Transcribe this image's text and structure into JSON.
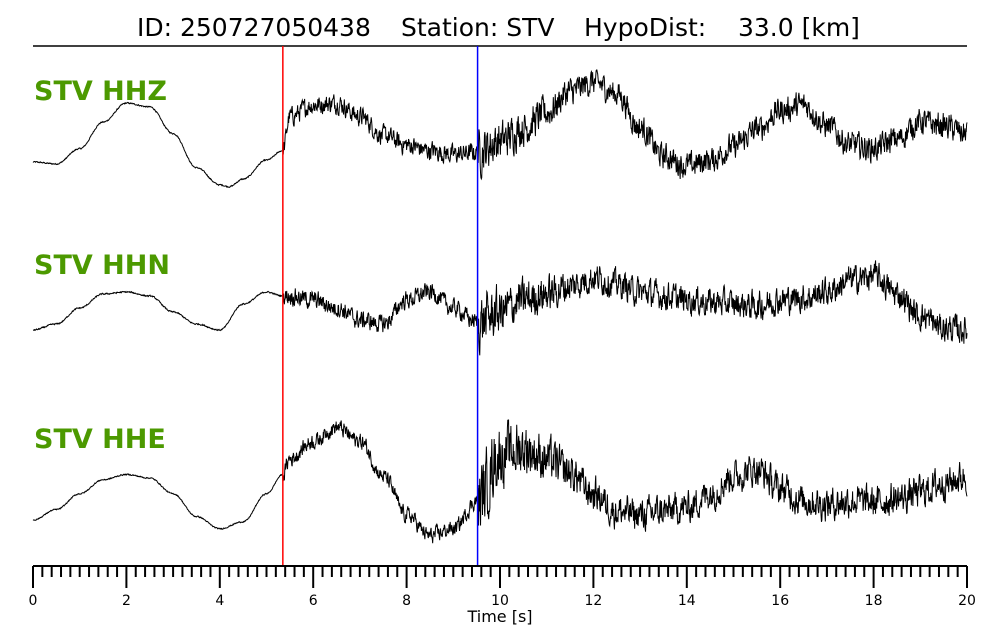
{
  "chart_data": {
    "type": "line",
    "title_parts": {
      "id": "ID: 250727050438",
      "station": "Station: STV",
      "hypodist": "HypoDist:    33.0 [km]"
    },
    "xlabel": "Time [s]",
    "xlim": [
      0,
      20
    ],
    "major_ticks": [
      0,
      2,
      4,
      6,
      8,
      10,
      12,
      14,
      16,
      18,
      20
    ],
    "minor_tick_step": 0.2,
    "grid": false,
    "picks": [
      {
        "phase": "P",
        "time": 5.35,
        "color": "#ff0000"
      },
      {
        "phase": "S",
        "time": 9.52,
        "color": "#0000ff"
      }
    ],
    "label_color": "#4c9900",
    "series": [
      {
        "name": "STV HHZ",
        "noise": [
          0.02,
          0.28,
          0.42
        ],
        "x": [
          0,
          0.5,
          1.0,
          1.5,
          2.0,
          2.5,
          3.0,
          3.5,
          4.0,
          4.2,
          4.5,
          5.0,
          5.35,
          5.5,
          6.0,
          6.5,
          7.0,
          7.5,
          8.0,
          8.5,
          9.0,
          9.5,
          10.0,
          10.5,
          11.0,
          11.5,
          12.0,
          12.5,
          13.0,
          13.5,
          14.0,
          14.5,
          15.0,
          15.5,
          16.0,
          16.5,
          17.0,
          17.5,
          18.0,
          18.5,
          19.0,
          19.5,
          20.0
        ],
        "values": [
          0.0,
          -0.05,
          0.35,
          1.05,
          1.55,
          1.45,
          0.75,
          -0.15,
          -0.6,
          -0.65,
          -0.45,
          0.05,
          0.3,
          1.2,
          1.5,
          1.55,
          1.2,
          0.7,
          0.45,
          0.3,
          0.2,
          0.25,
          0.55,
          0.9,
          1.3,
          1.85,
          2.1,
          1.8,
          0.9,
          0.15,
          -0.1,
          0.05,
          0.4,
          0.85,
          1.35,
          1.5,
          0.95,
          0.45,
          0.35,
          0.6,
          1.05,
          0.95,
          0.75
        ]
      },
      {
        "name": "STV HHN",
        "noise": [
          0.02,
          0.25,
          0.55
        ],
        "x": [
          0,
          0.5,
          1.0,
          1.5,
          2.0,
          2.5,
          3.0,
          3.5,
          4.0,
          4.5,
          5.0,
          5.35,
          5.5,
          6.0,
          6.5,
          7.0,
          7.5,
          8.0,
          8.5,
          9.0,
          9.5,
          10.0,
          10.5,
          11.0,
          11.5,
          12.0,
          12.5,
          13.0,
          13.5,
          14.0,
          14.5,
          15.0,
          15.5,
          16.0,
          16.5,
          17.0,
          17.5,
          18.0,
          18.5,
          19.0,
          19.5,
          20.0
        ],
        "values": [
          0.0,
          0.15,
          0.55,
          0.9,
          0.95,
          0.85,
          0.45,
          0.15,
          0.0,
          0.65,
          0.95,
          0.85,
          0.85,
          0.75,
          0.55,
          0.25,
          0.15,
          0.75,
          0.95,
          0.55,
          0.2,
          0.45,
          0.75,
          0.9,
          1.1,
          1.3,
          1.15,
          0.95,
          0.85,
          0.75,
          0.7,
          0.65,
          0.6,
          0.75,
          0.8,
          0.95,
          1.25,
          1.35,
          0.9,
          0.35,
          0.05,
          0.0
        ]
      },
      {
        "name": "STV HHE",
        "noise": [
          0.02,
          0.25,
          0.95
        ],
        "x": [
          0,
          0.5,
          1.0,
          1.5,
          2.0,
          2.5,
          3.0,
          3.5,
          4.0,
          4.5,
          5.0,
          5.35,
          5.5,
          6.0,
          6.5,
          7.0,
          7.5,
          8.0,
          8.5,
          9.0,
          9.52,
          10.0,
          10.5,
          11.0,
          11.5,
          12.0,
          12.5,
          13.0,
          13.5,
          14.0,
          14.5,
          15.0,
          15.5,
          16.0,
          16.5,
          17.0,
          17.5,
          18.0,
          18.5,
          19.0,
          19.5,
          20.0
        ],
        "values": [
          -0.2,
          0.1,
          0.55,
          0.95,
          1.1,
          1.0,
          0.55,
          -0.1,
          -0.45,
          -0.25,
          0.55,
          1.1,
          1.55,
          2.05,
          2.45,
          2.05,
          1.05,
          -0.05,
          -0.65,
          -0.45,
          0.35,
          1.65,
          1.85,
          1.55,
          1.15,
          0.55,
          0.05,
          -0.05,
          0.05,
          0.15,
          0.55,
          1.05,
          1.25,
          0.7,
          0.35,
          0.25,
          0.35,
          0.3,
          0.4,
          0.6,
          0.85,
          1.05
        ]
      }
    ]
  }
}
